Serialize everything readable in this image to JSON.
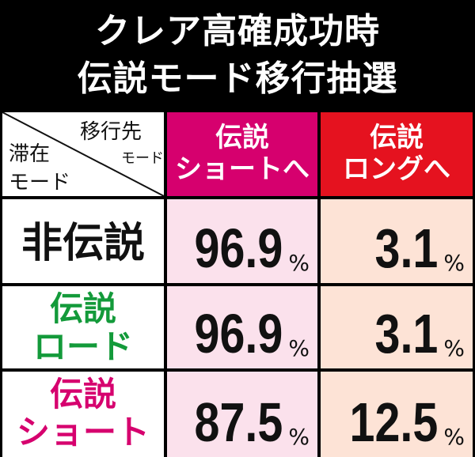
{
  "title": {
    "line1": "クレア高確成功時",
    "line2": "伝説モード移行抽選"
  },
  "header": {
    "corner": {
      "destination_line1": "移行先",
      "destination_line2": "モード",
      "current_line1": "滞在",
      "current_line2": "モード"
    },
    "columns": [
      {
        "line1": "伝説",
        "line2": "ショートへ",
        "color": "#d6006e"
      },
      {
        "line1": "伝説",
        "line2": "ロングへ",
        "color": "#e5121f"
      }
    ]
  },
  "rows": [
    {
      "label_line1": "非伝説",
      "label_line2": "",
      "label_color": "#111111",
      "short": "96.9",
      "long": "3.1"
    },
    {
      "label_line1": "伝説",
      "label_line2": "ロード",
      "label_color": "#139a3a",
      "short": "96.9",
      "long": "3.1"
    },
    {
      "label_line1": "伝説",
      "label_line2": "ショート",
      "label_color": "#d6006e",
      "short": "87.5",
      "long": "12.5"
    }
  ],
  "percent_sign": "%"
}
